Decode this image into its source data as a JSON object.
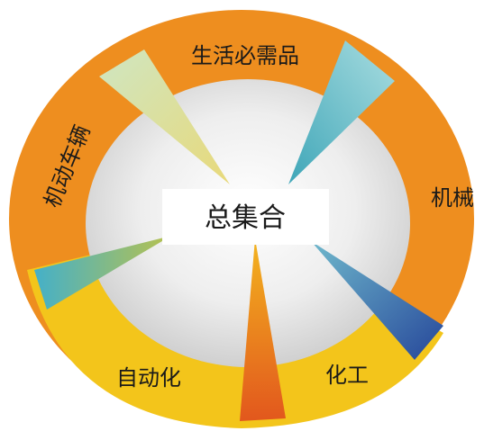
{
  "center": {
    "label": "总集合"
  },
  "segments": [
    {
      "id": "daily",
      "label": "生活必需品",
      "ring_color": "#e98a1e",
      "wedge_color": "#d9e08a"
    },
    {
      "id": "machinery",
      "label": "机械",
      "ring_color": "#e98a1e",
      "wedge_color": "#8fd0d8"
    },
    {
      "id": "chemical",
      "label": "化工",
      "ring_color": "#f1bf1a",
      "wedge_color": "#2f5a9e"
    },
    {
      "id": "automation",
      "label": "自动化",
      "ring_color": "#f1c21b",
      "wedge_color": "#e0601e"
    },
    {
      "id": "vehicles",
      "label": "机动车辆",
      "ring_color": "#e98a1e",
      "wedge_color": "#4fb3c6"
    }
  ]
}
